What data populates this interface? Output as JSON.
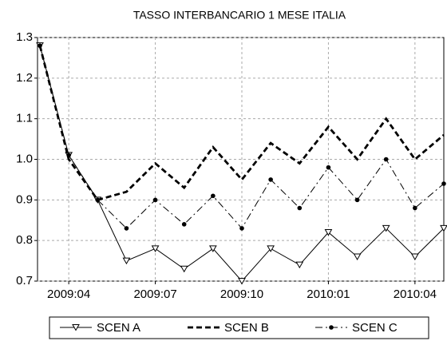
{
  "chart_data": {
    "type": "line",
    "title": "TASSO INTERBANCARIO 1 MESE ITALIA",
    "categories": [
      null,
      "2009:04",
      null,
      null,
      "2009:07",
      null,
      null,
      "2009:10",
      null,
      null,
      "2010:01",
      null,
      null,
      "2010:04",
      null
    ],
    "series": [
      {
        "name": "SCEN A",
        "color": "#000000",
        "line_style": "solid",
        "marker": "triangle-down",
        "values": [
          1.28,
          1.01,
          0.9,
          0.75,
          0.78,
          0.73,
          0.78,
          0.7,
          0.78,
          0.74,
          0.82,
          0.76,
          0.83,
          0.76,
          0.83
        ]
      },
      {
        "name": "SCEN B",
        "color": "#000000",
        "line_style": "dashed-thick",
        "marker": "none",
        "values": [
          1.28,
          1.0,
          0.9,
          0.92,
          0.99,
          0.93,
          1.03,
          0.95,
          1.04,
          0.99,
          1.08,
          1.0,
          1.1,
          1.0,
          1.06
        ]
      },
      {
        "name": "SCEN C",
        "color": "#000000",
        "line_style": "dash-dot",
        "marker": "circle",
        "values": [
          1.28,
          1.01,
          0.9,
          0.83,
          0.9,
          0.84,
          0.91,
          0.83,
          0.95,
          0.88,
          0.98,
          0.9,
          1.0,
          0.88,
          0.94
        ]
      }
    ],
    "ylim": [
      0.7,
      1.3
    ],
    "yticks": [
      0.7,
      0.8,
      0.9,
      {
        "value": 1,
        "label": "1.0"
      },
      1.1,
      1.2,
      1.3
    ],
    "grid": true
  }
}
